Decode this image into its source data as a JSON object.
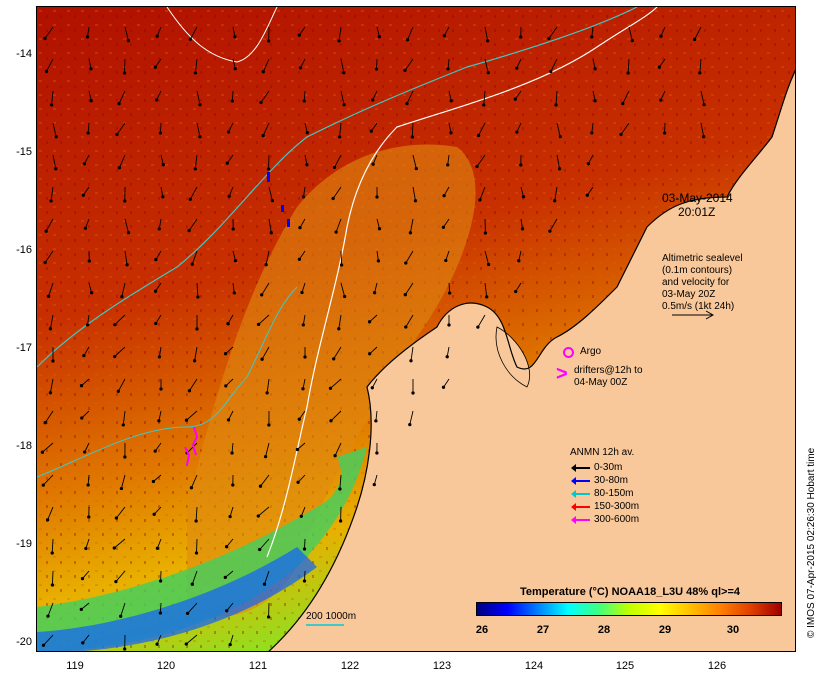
{
  "map": {
    "date_line1": "03-May-2014",
    "date_line2": "20:01Z",
    "altimetric": [
      "Altimetric sealevel",
      "(0.1m contours)",
      "and velocity for",
      "03-May 20Z",
      "0.5m/s (1kt 24h)"
    ],
    "argo_label": "Argo",
    "drifters_label": [
      "drifters@12h to",
      "04-May 00Z"
    ],
    "anmn_title": "ANMN 12h av.",
    "anmn_items": [
      {
        "label": "0-30m",
        "color": "#000000"
      },
      {
        "label": "30-80m",
        "color": "#0000ff"
      },
      {
        "label": "80-150m",
        "color": "#00c8c8"
      },
      {
        "label": "150-300m",
        "color": "#ff0000"
      },
      {
        "label": "300-600m",
        "color": "#ff00ff"
      }
    ],
    "colorbar_title": "Temperature (°C) NOAA18_L3U 48% ql>=4",
    "colorbar_ticks": [
      "26",
      "27",
      "28",
      "29",
      "30"
    ],
    "isobath_label": "200  1000m",
    "copyright": "© IMOS 07-Apr-2015 02:26:30 Hobart time",
    "y_ticks": [
      "-14",
      "-15",
      "-16",
      "-17",
      "-18",
      "-19",
      "-20"
    ],
    "x_ticks": [
      "119",
      "120",
      "121",
      "122",
      "123",
      "124",
      "125",
      "126"
    ],
    "colors": {
      "land": "#f9c89a",
      "ocean_warm": "#b81800",
      "ocean_mid": "#d86000",
      "isobath_200": "#40c8c8",
      "isobath_1000": "#ffffff"
    }
  }
}
